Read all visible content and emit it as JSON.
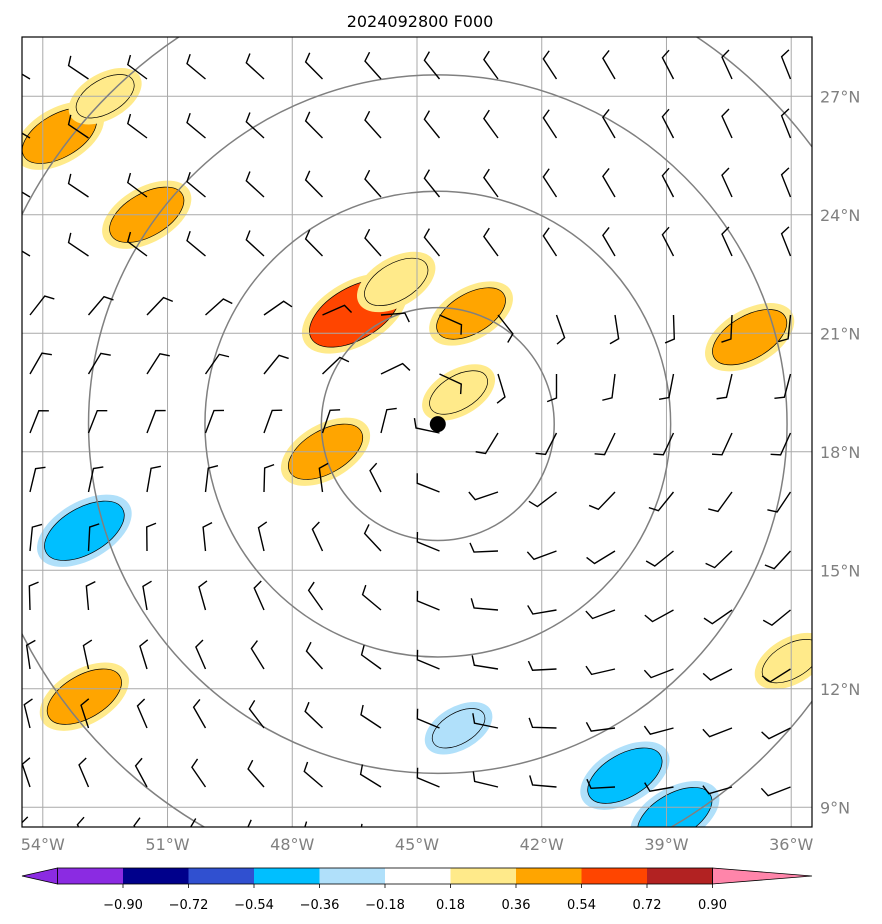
{
  "title": "2024092800 F000",
  "map": {
    "lon_range": [
      -54.5,
      -35.5
    ],
    "lat_range": [
      8.5,
      28.5
    ],
    "lon_ticks": [
      "54°W",
      "51°W",
      "48°W",
      "45°W",
      "42°W",
      "39°W",
      "36°W"
    ],
    "lon_values": [
      -54,
      -51,
      -48,
      -45,
      -42,
      -39,
      -36
    ],
    "lat_ticks": [
      "27°N",
      "24°N",
      "21°N",
      "18°N",
      "15°N",
      "12°N",
      "9°N"
    ],
    "lat_values": [
      27,
      24,
      21,
      18,
      15,
      12,
      9
    ],
    "gridlines": true,
    "center_marker": {
      "lon": -44.5,
      "lat": 18.7
    },
    "range_rings_deg": [
      2.8,
      5.6,
      8.4,
      11.2
    ],
    "grid_color": "#a9a9a9",
    "ring_color": "#808080",
    "tick_label_color": "#808080"
  },
  "colorbar": {
    "ticks": [
      "−0.90",
      "−0.72",
      "−0.54",
      "−0.36",
      "−0.18",
      "0.18",
      "0.36",
      "0.54",
      "0.72",
      "0.90"
    ],
    "colors": [
      "#8b2be2",
      "#00008b",
      "#3050d0",
      "#00bfff",
      "#b0e0fa",
      "#ffffff",
      "#ffea8a",
      "#ffa500",
      "#ff4500",
      "#b22222",
      "#ff85aa"
    ]
  },
  "chart_data": {
    "type": "heatmap",
    "title": "2024092800 F000",
    "xlabel": "",
    "ylabel": "",
    "features": [
      {
        "kind": "positive",
        "lon": -53.6,
        "lat": 26.0,
        "value": 0.45
      },
      {
        "kind": "positive",
        "lon": -52.5,
        "lat": 27.0,
        "value": 0.3
      },
      {
        "kind": "positive",
        "lon": -51.5,
        "lat": 24.0,
        "value": 0.45
      },
      {
        "kind": "positive",
        "lon": -46.5,
        "lat": 21.5,
        "value": 0.6
      },
      {
        "kind": "positive",
        "lon": -45.5,
        "lat": 22.3,
        "value": 0.35
      },
      {
        "kind": "positive",
        "lon": -43.7,
        "lat": 21.5,
        "value": 0.4
      },
      {
        "kind": "positive",
        "lon": -47.2,
        "lat": 18.0,
        "value": 0.45
      },
      {
        "kind": "positive",
        "lon": -44.0,
        "lat": 19.5,
        "value": 0.3
      },
      {
        "kind": "positive",
        "lon": -37.0,
        "lat": 20.9,
        "value": 0.45
      },
      {
        "kind": "positive",
        "lon": -53.0,
        "lat": 11.8,
        "value": 0.45
      },
      {
        "kind": "positive",
        "lon": -36.0,
        "lat": 12.7,
        "value": 0.3
      },
      {
        "kind": "negative",
        "lon": -53.0,
        "lat": 16.0,
        "value": -0.5
      },
      {
        "kind": "negative",
        "lon": -40.0,
        "lat": 9.8,
        "value": -0.45
      },
      {
        "kind": "negative",
        "lon": -38.8,
        "lat": 8.8,
        "value": -0.45
      },
      {
        "kind": "negative",
        "lon": -44.0,
        "lat": 11.0,
        "value": -0.25
      }
    ]
  }
}
